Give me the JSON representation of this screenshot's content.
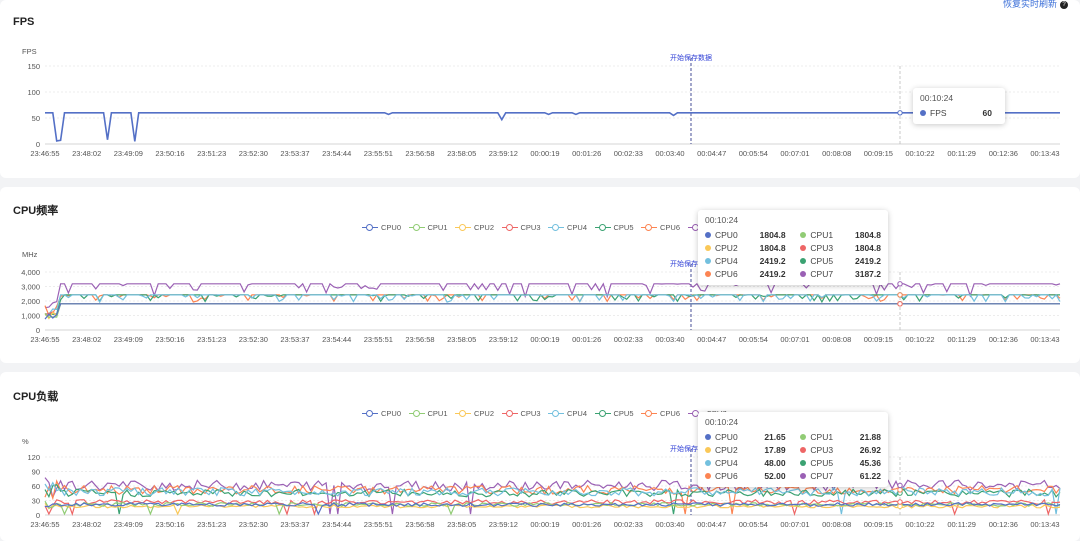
{
  "header": {
    "resume_label": "恢复实时刷新"
  },
  "time_axis": [
    "23:46:55",
    "23:48:02",
    "23:49:09",
    "23:50:16",
    "23:51:23",
    "23:52:30",
    "23:53:37",
    "23:54:44",
    "23:55:51",
    "23:56:58",
    "23:58:05",
    "23:59:12",
    "00:00:19",
    "00:01:26",
    "00:02:33",
    "00:03:40",
    "00:04:47",
    "00:05:54",
    "00:07:01",
    "00:08:08",
    "00:09:15",
    "00:10:22",
    "00:11:29",
    "00:12:36",
    "00:13:43"
  ],
  "marker_label": "开始保存数据",
  "colors": {
    "FPS": "#5470c6",
    "CPU0": "#5470c6",
    "CPU1": "#91cc75",
    "CPU2": "#fac858",
    "CPU3": "#ee6666",
    "CPU4": "#73c0de",
    "CPU5": "#3ba272",
    "CPU6": "#fc8452",
    "CPU7": "#9a60b4"
  },
  "chart_data": [
    {
      "type": "line",
      "title": "FPS",
      "ylabel": "FPS",
      "yticks": [
        "150",
        "100",
        "50",
        "0"
      ],
      "ylim": [
        0,
        150
      ],
      "grid": true,
      "series": [
        {
          "name": "FPS",
          "baseline": 60,
          "dips": [
            [
              0.06,
              8
            ],
            [
              0.09,
              5
            ],
            [
              0.45,
              47
            ],
            [
              0.62,
              55
            ]
          ]
        }
      ],
      "tooltip": {
        "time": "00:10:24",
        "rows": [
          {
            "name": "FPS",
            "value": "60"
          }
        ]
      }
    },
    {
      "type": "line",
      "title": "CPU频率",
      "ylabel": "MHz",
      "yticks": [
        "4,000",
        "3,000",
        "2,000",
        "1,000",
        "0"
      ],
      "ylim": [
        0,
        4000
      ],
      "grid": true,
      "legend": [
        "CPU0",
        "CPU1",
        "CPU2",
        "CPU3",
        "CPU4",
        "CPU5",
        "CPU6",
        "CPU7"
      ],
      "series": [
        {
          "name": "CPU0",
          "baseline": 1804.8
        },
        {
          "name": "CPU1",
          "baseline": 1804.8
        },
        {
          "name": "CPU2",
          "baseline": 1804.8
        },
        {
          "name": "CPU3",
          "baseline": 1804.8
        },
        {
          "name": "CPU4",
          "baseline": 2419.2
        },
        {
          "name": "CPU5",
          "baseline": 2419.2
        },
        {
          "name": "CPU6",
          "baseline": 2419.2
        },
        {
          "name": "CPU7",
          "baseline": 3187.2
        }
      ],
      "tooltip": {
        "time": "00:10:24",
        "rows": [
          {
            "name": "CPU0",
            "value": "1804.8"
          },
          {
            "name": "CPU1",
            "value": "1804.8"
          },
          {
            "name": "CPU2",
            "value": "1804.8"
          },
          {
            "name": "CPU3",
            "value": "1804.8"
          },
          {
            "name": "CPU4",
            "value": "2419.2"
          },
          {
            "name": "CPU5",
            "value": "2419.2"
          },
          {
            "name": "CPU6",
            "value": "2419.2"
          },
          {
            "name": "CPU7",
            "value": "3187.2"
          }
        ]
      }
    },
    {
      "type": "line",
      "title": "CPU负载",
      "ylabel": "%",
      "yticks": [
        "120",
        "90",
        "60",
        "30",
        "0"
      ],
      "ylim": [
        0,
        120
      ],
      "grid": true,
      "legend": [
        "CPU0",
        "CPU1",
        "CPU2",
        "CPU3",
        "CPU4",
        "CPU5",
        "CPU6",
        "CPU7"
      ],
      "series": [
        {
          "name": "CPU0",
          "baseline": 21.65
        },
        {
          "name": "CPU1",
          "baseline": 21.88
        },
        {
          "name": "CPU2",
          "baseline": 17.89
        },
        {
          "name": "CPU3",
          "baseline": 26.92
        },
        {
          "name": "CPU4",
          "baseline": 48.0
        },
        {
          "name": "CPU5",
          "baseline": 45.36
        },
        {
          "name": "CPU6",
          "baseline": 52.0
        },
        {
          "name": "CPU7",
          "baseline": 61.22
        }
      ],
      "tooltip": {
        "time": "00:10:24",
        "rows": [
          {
            "name": "CPU0",
            "value": "21.65"
          },
          {
            "name": "CPU1",
            "value": "21.88"
          },
          {
            "name": "CPU2",
            "value": "17.89"
          },
          {
            "name": "CPU3",
            "value": "26.92"
          },
          {
            "name": "CPU4",
            "value": "48.00"
          },
          {
            "name": "CPU5",
            "value": "45.36"
          },
          {
            "name": "CPU6",
            "value": "52.00"
          },
          {
            "name": "CPU7",
            "value": "61.22"
          }
        ]
      }
    }
  ]
}
